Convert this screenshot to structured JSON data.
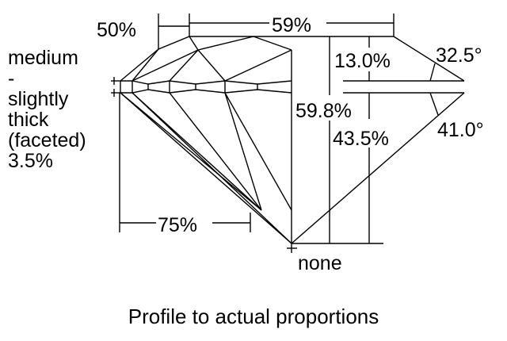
{
  "labels": {
    "crown_height_left": "50%",
    "table": "59%",
    "crown_height": "13.0%",
    "crown_angle": "32.5°",
    "total_depth": "59.8%",
    "pavilion_depth": "43.5%",
    "pavilion_angle": "41.0°",
    "lower_half": "75%",
    "culet": "none",
    "girdle": [
      "medium",
      "-",
      "slightly",
      "thick",
      "(faceted)",
      "3.5%"
    ]
  },
  "caption": "Profile to actual proportions",
  "colors": {
    "line": "#000000",
    "background": "#ffffff"
  }
}
